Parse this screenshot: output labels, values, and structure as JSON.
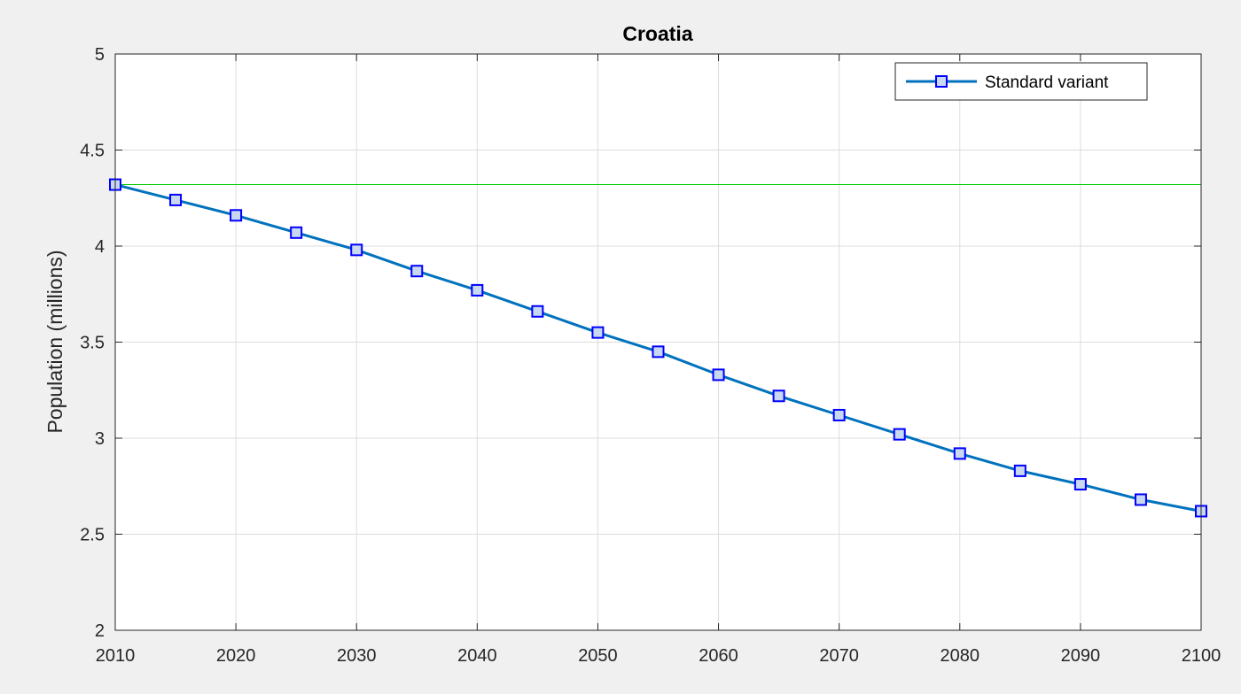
{
  "chart_data": {
    "type": "line",
    "title": "Croatia",
    "xlabel": "",
    "ylabel": "Population (millions)",
    "xlim": [
      2010,
      2100
    ],
    "ylim": [
      2,
      5
    ],
    "x_ticks": [
      "2010",
      "2020",
      "2030",
      "2040",
      "2050",
      "2060",
      "2070",
      "2080",
      "2090",
      "2100"
    ],
    "y_ticks": [
      "2",
      "2.5",
      "3",
      "3.5",
      "4",
      "4.5",
      "5"
    ],
    "grid": true,
    "legend_position": "top-right",
    "series": [
      {
        "name": "Standard variant",
        "color": "#0072bd",
        "marker": "square",
        "marker_edge_color": "#0000ff",
        "marker_face_color": "#c8d8f0",
        "x": [
          2010,
          2015,
          2020,
          2025,
          2030,
          2035,
          2040,
          2045,
          2050,
          2055,
          2060,
          2065,
          2070,
          2075,
          2080,
          2085,
          2090,
          2095,
          2100
        ],
        "y": [
          4.32,
          4.24,
          4.16,
          4.07,
          3.98,
          3.87,
          3.77,
          3.66,
          3.55,
          3.45,
          3.33,
          3.22,
          3.12,
          3.02,
          2.92,
          2.83,
          2.76,
          2.68,
          2.62
        ]
      }
    ],
    "reference_line": {
      "y": 4.32,
      "color": "#00cc00"
    }
  }
}
